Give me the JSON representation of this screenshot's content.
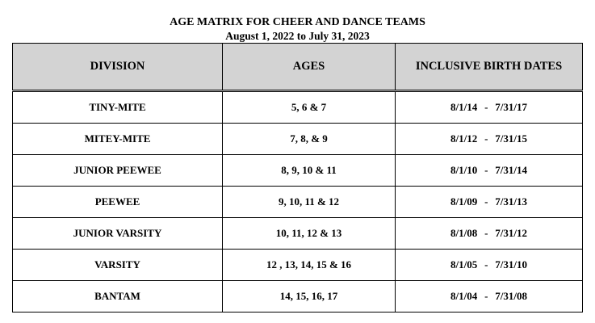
{
  "header": {
    "title": "AGE MATRIX FOR CHEER AND DANCE TEAMS",
    "subtitle": "August 1, 2022 to July 31, 2023"
  },
  "table": {
    "columns": [
      "DIVISION",
      "AGES",
      "INCLUSIVE BIRTH DATES"
    ],
    "rows": [
      {
        "division": "TINY-MITE",
        "ages": "5, 6 & 7",
        "start": "8/1/14",
        "sep": "-",
        "end": "7/31/17"
      },
      {
        "division": "MITEY-MITE",
        "ages": "7, 8, & 9",
        "start": "8/1/12",
        "sep": "-",
        "end": "7/31/15"
      },
      {
        "division": "JUNIOR PEEWEE",
        "ages": "8, 9, 10 & 11",
        "start": "8/1/10",
        "sep": "-",
        "end": "7/31/14"
      },
      {
        "division": "PEEWEE",
        "ages": "9, 10, 11 & 12",
        "start": "8/1/09",
        "sep": "-",
        "end": "7/31/13"
      },
      {
        "division": "JUNIOR VARSITY",
        "ages": "10, 11, 12 & 13",
        "start": "8/1/08",
        "sep": "-",
        "end": "7/31/12"
      },
      {
        "division": "VARSITY",
        "ages": "12 , 13, 14, 15 & 16",
        "start": "8/1/05",
        "sep": "-",
        "end": "7/31/10"
      },
      {
        "division": "BANTAM",
        "ages": "14, 15, 16, 17",
        "start": "8/1/04",
        "sep": "-",
        "end": "7/31/08"
      }
    ]
  },
  "colors": {
    "header_background": "#d3d3d3",
    "border": "#000000",
    "text": "#000000"
  }
}
